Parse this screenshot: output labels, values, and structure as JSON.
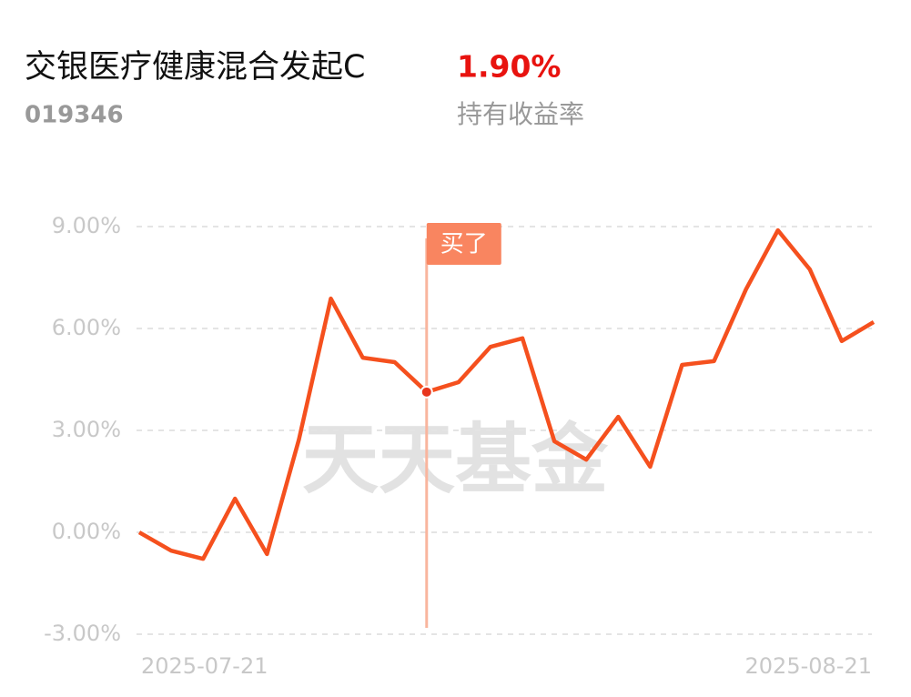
{
  "chart_data": {
    "type": "line",
    "title": "交银医疗健康混合发起C",
    "holding_return": "1.90%",
    "code": "019346",
    "holding_return_label": "持有收益率",
    "watermark": "天天基金",
    "categories": [
      "2025-07-21",
      null,
      null,
      null,
      null,
      null,
      null,
      null,
      null,
      null,
      null,
      null,
      null,
      null,
      null,
      null,
      null,
      null,
      null,
      null,
      null,
      null,
      null,
      "2025-08-21"
    ],
    "values": [
      0.0,
      -0.54,
      -0.78,
      0.99,
      -0.64,
      2.73,
      6.88,
      5.14,
      5.01,
      4.13,
      4.42,
      5.46,
      5.71,
      2.68,
      2.14,
      3.4,
      1.93,
      4.93,
      5.04,
      7.15,
      8.89,
      7.74,
      5.63,
      6.19
    ],
    "color": "#f5501e",
    "ylim": [
      -3.2,
      9.3
    ],
    "yticks": [
      {
        "value": -3,
        "label": "-3.00%"
      },
      {
        "value": 0,
        "label": "0.00%"
      },
      {
        "value": 3,
        "label": "3.00%"
      },
      {
        "value": 6,
        "label": "6.00%"
      },
      {
        "value": 9,
        "label": "9.00%"
      }
    ],
    "grid": true,
    "buy_marker": {
      "label": "买了",
      "index": 9
    }
  }
}
